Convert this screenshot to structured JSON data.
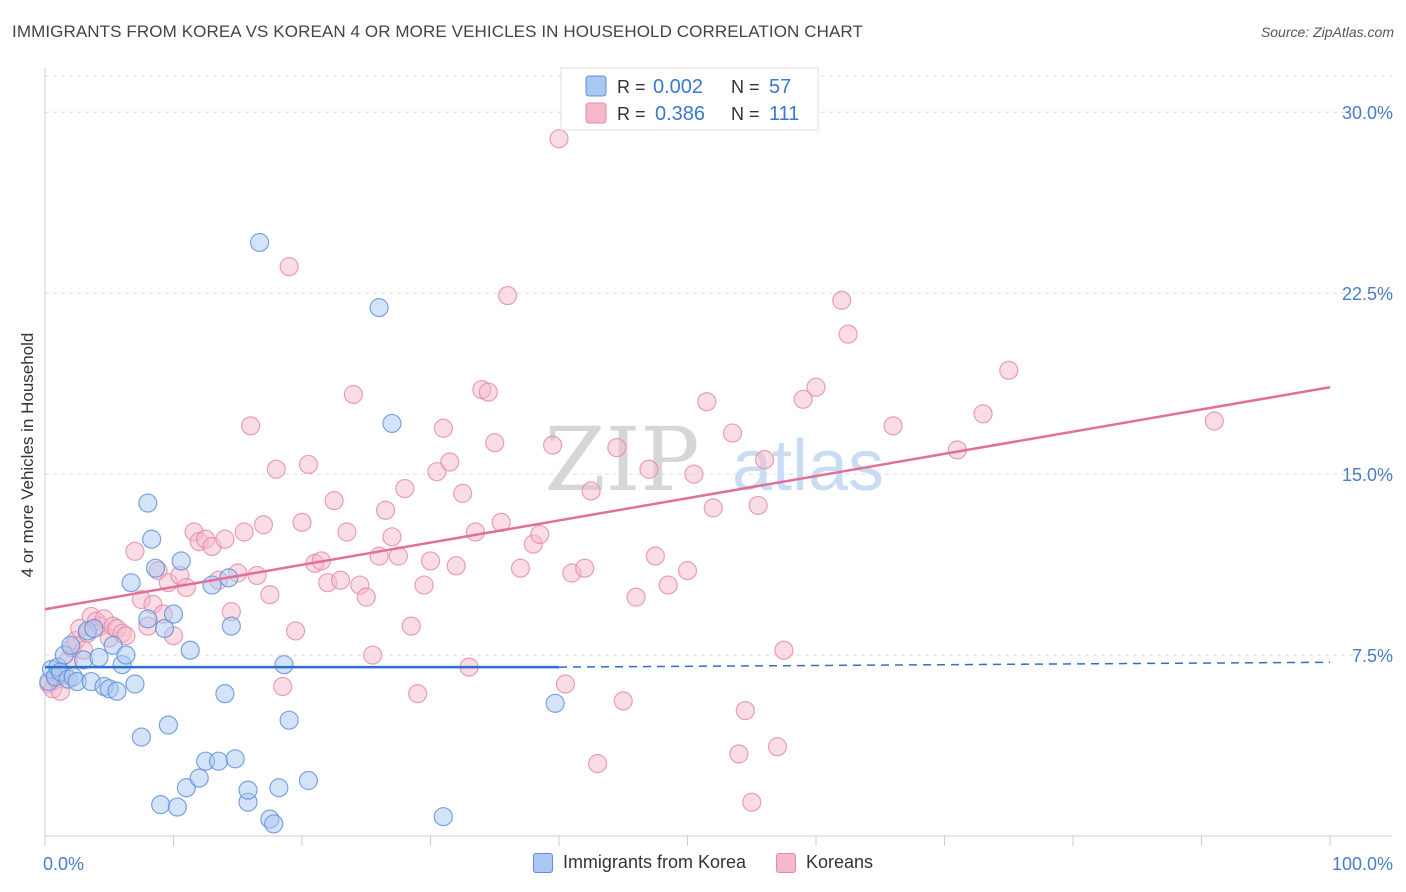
{
  "title": "IMMIGRANTS FROM KOREA VS KOREAN 4 OR MORE VEHICLES IN HOUSEHOLD CORRELATION CHART",
  "source": "Source: ZipAtlas.com",
  "watermark": {
    "zip": "ZIP",
    "atlas": "atlas"
  },
  "colors": {
    "blue_fill": "#a9c7f2",
    "blue_stroke": "#5b8fd8",
    "blue_line": "#2c6fcd",
    "pink_fill": "#f6b9cc",
    "pink_stroke": "#e488a8",
    "pink_line": "#e0709a",
    "tick_label": "#4a7cc7",
    "grid": "#dddddd"
  },
  "legend": {
    "r_label": "R =",
    "n_label": "N =",
    "rows": [
      {
        "r": "0.002",
        "n": "57"
      },
      {
        "r": "0.386",
        "n": "111"
      }
    ]
  },
  "chart_data": {
    "type": "scatter",
    "title": "IMMIGRANTS FROM KOREA VS KOREAN 4 OR MORE VEHICLES IN HOUSEHOLD CORRELATION CHART",
    "xlabel": "",
    "ylabel": "4 or more Vehicles in Household",
    "xlim": [
      0,
      100
    ],
    "ylim": [
      0,
      31.5
    ],
    "x_tick_labels": [
      "0.0%",
      "100.0%"
    ],
    "y_ticks": [
      7.5,
      15.0,
      22.5,
      30.0
    ],
    "y_tick_labels": [
      "7.5%",
      "15.0%",
      "22.5%",
      "30.0%"
    ],
    "grid": true,
    "legend_position": "top-center",
    "series": [
      {
        "name": "Immigrants from Korea",
        "color": "#a9c7f2",
        "trend": {
          "x": [
            0,
            40
          ],
          "y": [
            7.0,
            7.0
          ],
          "dashed_extension": {
            "x": [
              40,
              100
            ],
            "y": [
              7.0,
              7.2
            ]
          }
        },
        "points": [
          [
            0.3,
            6.4
          ],
          [
            0.5,
            6.9
          ],
          [
            0.8,
            6.6
          ],
          [
            1.0,
            7.0
          ],
          [
            1.2,
            6.8
          ],
          [
            1.5,
            7.5
          ],
          [
            1.8,
            6.5
          ],
          [
            2.0,
            7.9
          ],
          [
            2.2,
            6.6
          ],
          [
            2.5,
            6.4
          ],
          [
            3.0,
            7.3
          ],
          [
            3.3,
            8.5
          ],
          [
            3.6,
            6.4
          ],
          [
            3.8,
            8.6
          ],
          [
            4.2,
            7.4
          ],
          [
            4.6,
            6.2
          ],
          [
            5.0,
            6.1
          ],
          [
            5.3,
            7.9
          ],
          [
            5.6,
            6.0
          ],
          [
            6.0,
            7.1
          ],
          [
            6.3,
            7.5
          ],
          [
            6.7,
            10.5
          ],
          [
            7.0,
            6.3
          ],
          [
            7.5,
            4.1
          ],
          [
            8.0,
            9.0
          ],
          [
            8.0,
            13.8
          ],
          [
            8.3,
            12.3
          ],
          [
            8.6,
            11.1
          ],
          [
            9.0,
            1.3
          ],
          [
            9.3,
            8.6
          ],
          [
            9.6,
            4.6
          ],
          [
            10.0,
            9.2
          ],
          [
            10.3,
            1.2
          ],
          [
            10.6,
            11.4
          ],
          [
            11.0,
            2.0
          ],
          [
            11.3,
            7.7
          ],
          [
            12.0,
            2.4
          ],
          [
            12.5,
            3.1
          ],
          [
            13.0,
            10.4
          ],
          [
            13.5,
            3.1
          ],
          [
            14.0,
            5.9
          ],
          [
            14.3,
            10.7
          ],
          [
            14.5,
            8.7
          ],
          [
            14.8,
            3.2
          ],
          [
            15.8,
            1.4
          ],
          [
            15.8,
            1.9
          ],
          [
            16.7,
            24.6
          ],
          [
            17.5,
            0.7
          ],
          [
            17.8,
            0.5
          ],
          [
            18.2,
            2.0
          ],
          [
            18.6,
            7.1
          ],
          [
            19.0,
            4.8
          ],
          [
            20.5,
            2.3
          ],
          [
            26.0,
            21.9
          ],
          [
            27.0,
            17.1
          ],
          [
            31.0,
            0.8
          ],
          [
            39.7,
            5.5
          ]
        ]
      },
      {
        "name": "Koreans",
        "color": "#f6b9cc",
        "trend": {
          "x": [
            0,
            100
          ],
          "y": [
            9.4,
            18.6
          ]
        },
        "points": [
          [
            0.3,
            6.3
          ],
          [
            0.6,
            6.1
          ],
          [
            0.9,
            6.5
          ],
          [
            1.2,
            6.0
          ],
          [
            1.5,
            6.7
          ],
          [
            1.8,
            7.3
          ],
          [
            2.1,
            7.8
          ],
          [
            2.4,
            8.1
          ],
          [
            2.7,
            8.6
          ],
          [
            3.0,
            7.7
          ],
          [
            3.3,
            8.4
          ],
          [
            3.6,
            9.1
          ],
          [
            4.0,
            8.9
          ],
          [
            4.3,
            8.7
          ],
          [
            4.6,
            9.0
          ],
          [
            5.0,
            8.2
          ],
          [
            5.3,
            8.7
          ],
          [
            5.6,
            8.6
          ],
          [
            6.0,
            8.4
          ],
          [
            6.3,
            8.3
          ],
          [
            7.0,
            11.8
          ],
          [
            7.5,
            9.8
          ],
          [
            8.0,
            8.7
          ],
          [
            8.4,
            9.6
          ],
          [
            8.8,
            11.0
          ],
          [
            9.2,
            9.2
          ],
          [
            9.6,
            10.5
          ],
          [
            10.0,
            8.3
          ],
          [
            10.5,
            10.8
          ],
          [
            11.0,
            10.3
          ],
          [
            11.6,
            12.6
          ],
          [
            12.0,
            12.2
          ],
          [
            12.5,
            12.3
          ],
          [
            13.0,
            12.0
          ],
          [
            13.5,
            10.6
          ],
          [
            14.0,
            12.3
          ],
          [
            14.5,
            9.3
          ],
          [
            15.0,
            10.9
          ],
          [
            15.5,
            12.6
          ],
          [
            16.0,
            17.0
          ],
          [
            16.5,
            10.8
          ],
          [
            17.0,
            12.9
          ],
          [
            17.5,
            10.0
          ],
          [
            18.0,
            15.2
          ],
          [
            18.5,
            6.2
          ],
          [
            19.0,
            23.6
          ],
          [
            19.5,
            8.5
          ],
          [
            20.0,
            13.0
          ],
          [
            20.5,
            15.4
          ],
          [
            21.0,
            11.3
          ],
          [
            21.5,
            11.4
          ],
          [
            22.0,
            10.5
          ],
          [
            22.5,
            13.9
          ],
          [
            23.0,
            10.6
          ],
          [
            23.5,
            12.6
          ],
          [
            24.0,
            18.3
          ],
          [
            24.5,
            10.4
          ],
          [
            25.0,
            9.9
          ],
          [
            25.5,
            7.5
          ],
          [
            26.0,
            11.6
          ],
          [
            26.5,
            13.5
          ],
          [
            27.0,
            12.4
          ],
          [
            27.5,
            11.6
          ],
          [
            28.0,
            14.4
          ],
          [
            28.5,
            8.7
          ],
          [
            29.0,
            5.9
          ],
          [
            29.5,
            10.4
          ],
          [
            30.0,
            11.4
          ],
          [
            30.5,
            15.1
          ],
          [
            31.0,
            16.9
          ],
          [
            31.5,
            15.5
          ],
          [
            32.0,
            11.2
          ],
          [
            32.5,
            14.2
          ],
          [
            33.0,
            7.0
          ],
          [
            33.5,
            12.6
          ],
          [
            34.0,
            18.5
          ],
          [
            34.5,
            18.4
          ],
          [
            35.0,
            16.3
          ],
          [
            35.5,
            13.0
          ],
          [
            36.0,
            22.4
          ],
          [
            37.0,
            11.1
          ],
          [
            38.0,
            12.1
          ],
          [
            38.5,
            12.5
          ],
          [
            39.5,
            16.2
          ],
          [
            40.0,
            28.9
          ],
          [
            40.5,
            6.3
          ],
          [
            41.0,
            10.9
          ],
          [
            42.0,
            11.1
          ],
          [
            42.5,
            14.3
          ],
          [
            43.0,
            3.0
          ],
          [
            44.5,
            16.1
          ],
          [
            45.0,
            5.6
          ],
          [
            46.0,
            9.9
          ],
          [
            47.0,
            15.2
          ],
          [
            47.5,
            11.6
          ],
          [
            48.5,
            10.4
          ],
          [
            50.0,
            11.0
          ],
          [
            50.5,
            15.0
          ],
          [
            51.5,
            18.0
          ],
          [
            52.0,
            13.6
          ],
          [
            53.5,
            16.7
          ],
          [
            54.0,
            3.4
          ],
          [
            54.5,
            5.2
          ],
          [
            55.0,
            1.4
          ],
          [
            55.5,
            13.7
          ],
          [
            56.0,
            15.6
          ],
          [
            57.0,
            3.7
          ],
          [
            57.5,
            7.7
          ],
          [
            59.0,
            18.1
          ],
          [
            60.0,
            18.6
          ],
          [
            62.0,
            22.2
          ],
          [
            62.5,
            20.8
          ],
          [
            66.0,
            17.0
          ],
          [
            71.0,
            16.0
          ],
          [
            73.0,
            17.5
          ],
          [
            75.0,
            19.3
          ],
          [
            91.0,
            17.2
          ]
        ]
      }
    ]
  },
  "bottom_legend": [
    "Immigrants from Korea",
    "Koreans"
  ]
}
